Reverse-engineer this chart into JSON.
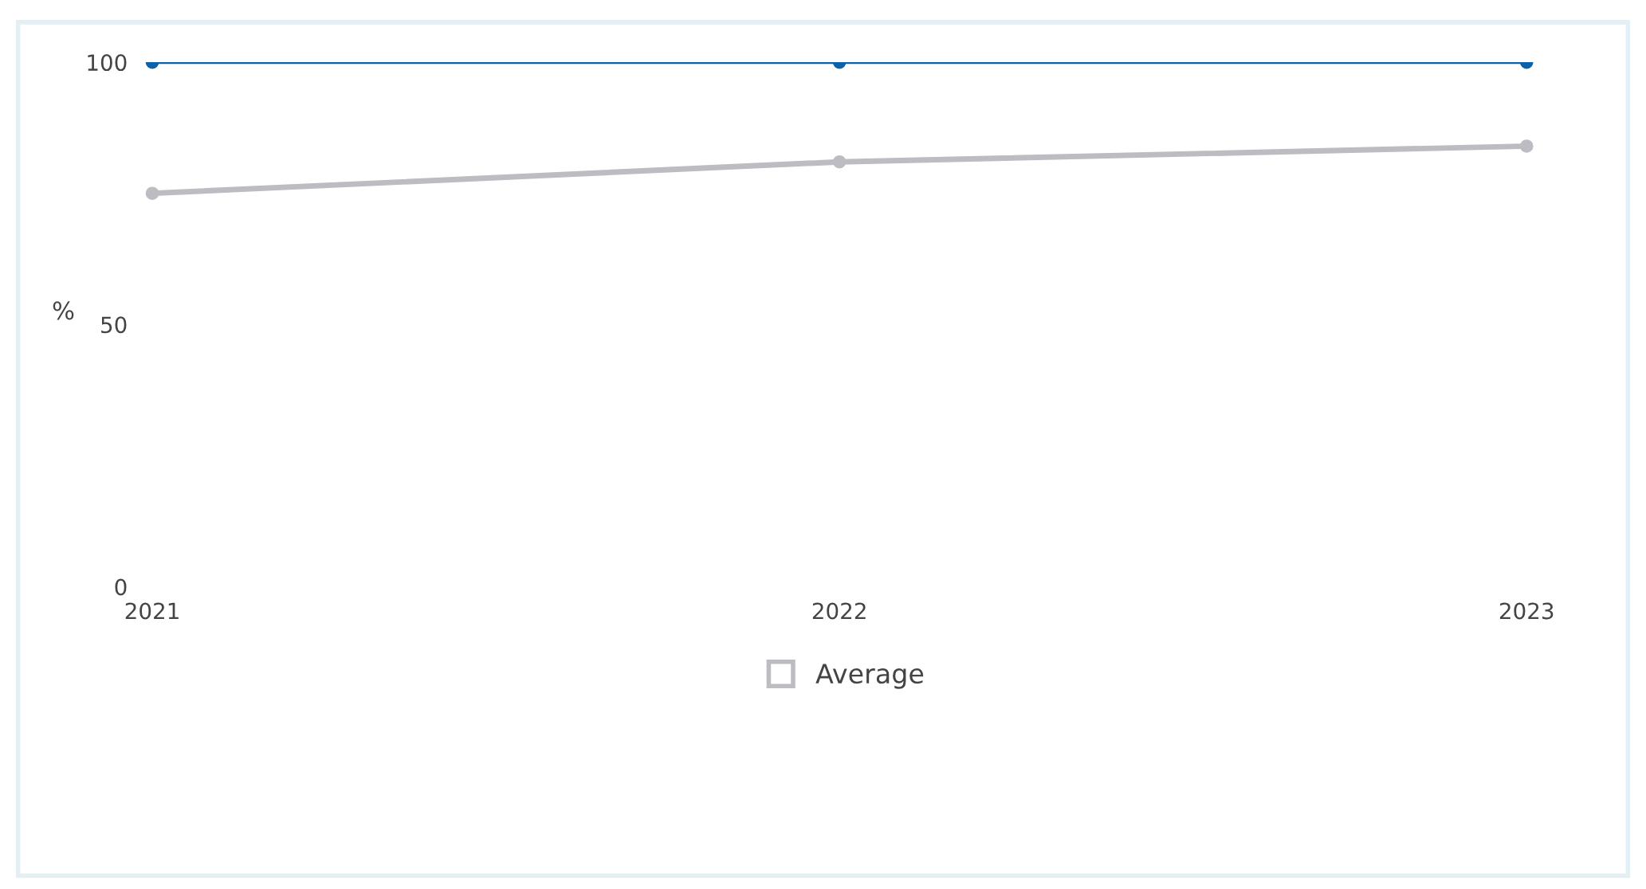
{
  "chart_data": {
    "type": "line",
    "categories": [
      "2021",
      "2022",
      "2023"
    ],
    "series": [
      {
        "color": "#0b62a8",
        "values": [
          100,
          100,
          100
        ]
      },
      {
        "name": "Average",
        "color": "#bcbcc2",
        "values": [
          75,
          81,
          84
        ]
      }
    ],
    "ylabel": "%",
    "ylim": [
      0,
      100
    ],
    "yticks": [
      0,
      50,
      100
    ],
    "grid": false,
    "legend": "bottom",
    "marker": "circle",
    "line_style": "solid"
  }
}
